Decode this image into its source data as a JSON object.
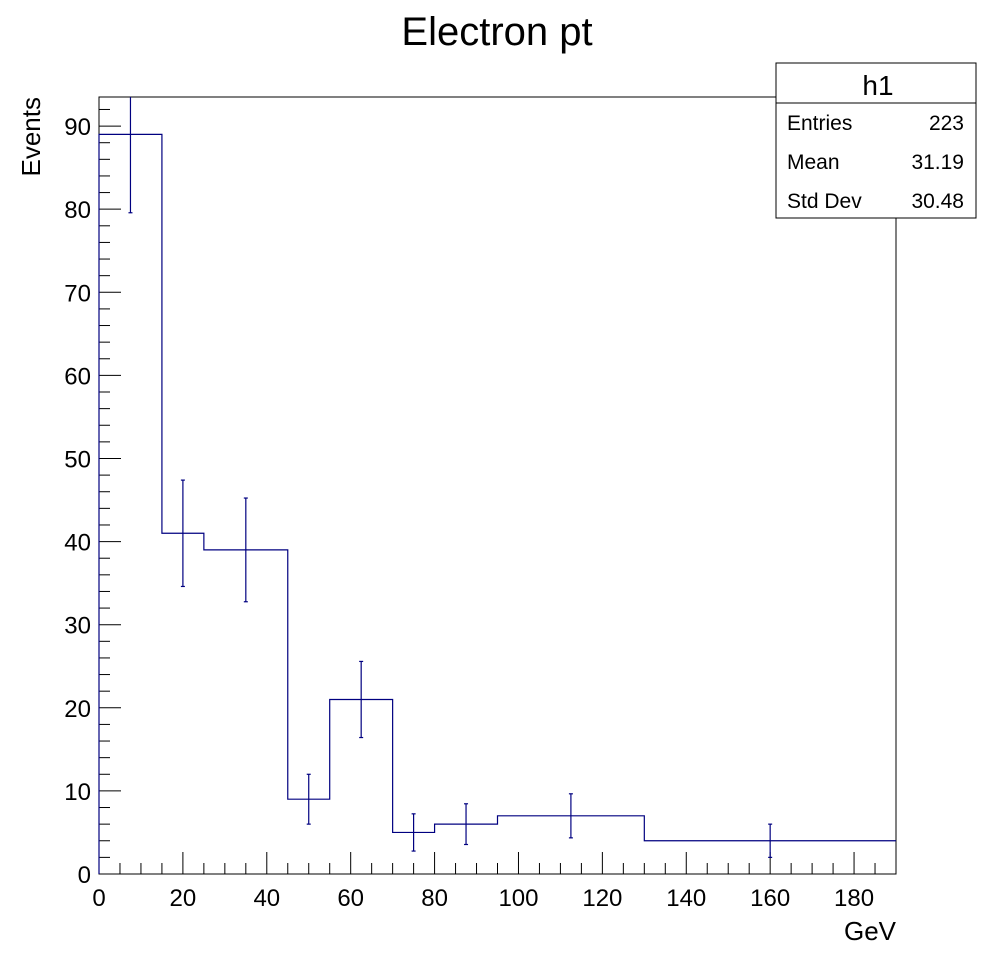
{
  "chart_data": {
    "type": "histogram",
    "title": "Electron pt",
    "xlabel": "GeV",
    "ylabel": "Events",
    "xlim": [
      0,
      190
    ],
    "ylim": [
      0,
      93.5
    ],
    "x_ticks": [
      0,
      20,
      40,
      60,
      80,
      100,
      120,
      140,
      160,
      180
    ],
    "y_ticks": [
      0,
      10,
      20,
      30,
      40,
      50,
      60,
      70,
      80,
      90
    ],
    "line_color": "#000080",
    "grid": false,
    "bins": [
      {
        "low": 0,
        "high": 15,
        "value": 89,
        "error": 9.43
      },
      {
        "low": 15,
        "high": 25,
        "value": 41,
        "error": 6.4
      },
      {
        "low": 25,
        "high": 45,
        "value": 39,
        "error": 6.24
      },
      {
        "low": 45,
        "high": 55,
        "value": 9,
        "error": 3.0
      },
      {
        "low": 55,
        "high": 70,
        "value": 21,
        "error": 4.58
      },
      {
        "low": 70,
        "high": 80,
        "value": 5,
        "error": 2.24
      },
      {
        "low": 80,
        "high": 95,
        "value": 6,
        "error": 2.45
      },
      {
        "low": 95,
        "high": 130,
        "value": 7,
        "error": 2.65
      },
      {
        "low": 130,
        "high": 190,
        "value": 4,
        "error": 2.0
      }
    ],
    "stats_box": {
      "name": "h1",
      "rows": [
        {
          "label": "Entries",
          "value": "223"
        },
        {
          "label": "Mean",
          "value": "31.19"
        },
        {
          "label": "Std Dev",
          "value": "30.48"
        }
      ]
    }
  }
}
